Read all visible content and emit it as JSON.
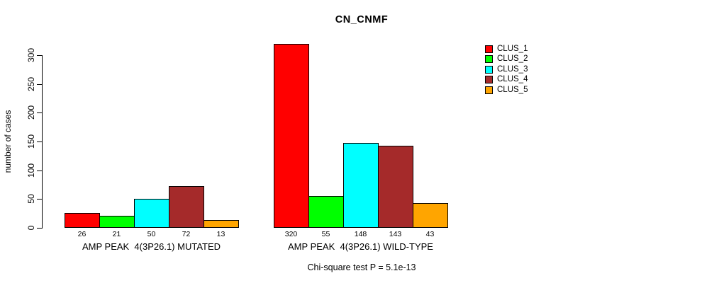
{
  "chart_data": {
    "type": "bar",
    "title": "CN_CNMF",
    "ylabel": "number of cases",
    "xlabel": "",
    "ylim": [
      0,
      300
    ],
    "yticks": [
      0,
      50,
      100,
      150,
      200,
      250,
      300
    ],
    "grid": false,
    "legend_position": "top-right",
    "categories": [
      "AMP PEAK  4(3P26.1) MUTATED",
      "AMP PEAK  4(3P26.1) WILD-TYPE"
    ],
    "series": [
      {
        "name": "CLUS_1",
        "color": "#FF0000",
        "values": [
          26,
          320
        ]
      },
      {
        "name": "CLUS_2",
        "color": "#00FF00",
        "values": [
          21,
          55
        ]
      },
      {
        "name": "CLUS_3",
        "color": "#00FFFF",
        "values": [
          50,
          148
        ]
      },
      {
        "name": "CLUS_4",
        "color": "#A52A2A",
        "values": [
          72,
          143
        ]
      },
      {
        "name": "CLUS_5",
        "color": "#FFA500",
        "values": [
          13,
          43
        ]
      }
    ],
    "bar_value_labels": [
      [
        26,
        21,
        50,
        72,
        13
      ],
      [
        320,
        55,
        148,
        143,
        43
      ]
    ],
    "annotation": "Chi-square test P = 5.1e-13"
  }
}
